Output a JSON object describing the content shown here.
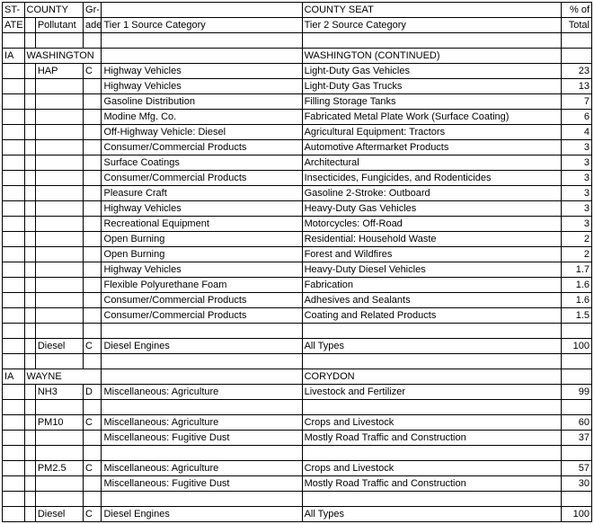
{
  "headers": {
    "row1": {
      "state": "ST-",
      "county": "COUNTY",
      "grade": "Gr-",
      "seat": "COUNTY SEAT",
      "pct": "% of"
    },
    "row2": {
      "ate": "ATE",
      "pollutant": "Pollutant",
      "ade": "ade",
      "tier1": "Tier 1 Source Category",
      "tier2": "Tier 2 Source Category",
      "total": "Total"
    }
  },
  "rows": [
    {
      "type": "blank"
    },
    {
      "type": "county",
      "state": "IA",
      "county": "WASHINGTON",
      "seat": "WASHINGTON (CONTINUED)"
    },
    {
      "type": "data",
      "pollutant": "HAP",
      "grade": "C",
      "tier1": "Highway Vehicles",
      "tier2": "Light-Duty Gas Vehicles",
      "pct": "23"
    },
    {
      "type": "data",
      "tier1": "Highway Vehicles",
      "tier2": "Light-Duty Gas Trucks",
      "pct": "13"
    },
    {
      "type": "data",
      "tier1": "Gasoline Distribution",
      "tier2": "Filling Storage Tanks",
      "pct": "7"
    },
    {
      "type": "data",
      "tier1": "Modine Mfg. Co.",
      "tier2": "Fabricated Metal Plate Work (Surface Coating)",
      "pct": "6"
    },
    {
      "type": "data",
      "tier1": "Off-Highway Vehicle: Diesel",
      "tier2": "Agricultural Equipment: Tractors",
      "pct": "4"
    },
    {
      "type": "data",
      "tier1": "Consumer/Commercial Products",
      "tier2": "Automotive Aftermarket Products",
      "pct": "3"
    },
    {
      "type": "data",
      "tier1": "Surface Coatings",
      "tier2": "Architectural",
      "pct": "3"
    },
    {
      "type": "data",
      "tier1": "Consumer/Commercial Products",
      "tier2": "Insecticides, Fungicides, and Rodenticides",
      "pct": "3"
    },
    {
      "type": "data",
      "tier1": "Pleasure Craft",
      "tier2": "Gasoline 2-Stroke: Outboard",
      "pct": "3"
    },
    {
      "type": "data",
      "tier1": "Highway Vehicles",
      "tier2": "Heavy-Duty Gas Vehicles",
      "pct": "3"
    },
    {
      "type": "data",
      "tier1": "Recreational Equipment",
      "tier2": "Motorcycles: Off-Road",
      "pct": "3"
    },
    {
      "type": "data",
      "tier1": "Open Burning",
      "tier2": "Residential: Household Waste",
      "pct": "2"
    },
    {
      "type": "data",
      "tier1": "Open Burning",
      "tier2": "Forest and Wildfires",
      "pct": "2"
    },
    {
      "type": "data",
      "tier1": "Highway Vehicles",
      "tier2": "Heavy-Duty Diesel Vehicles",
      "pct": "1.7"
    },
    {
      "type": "data",
      "tier1": "Flexible Polyurethane Foam",
      "tier2": "Fabrication",
      "pct": "1.6"
    },
    {
      "type": "data",
      "tier1": "Consumer/Commercial Products",
      "tier2": "Adhesives and Sealants",
      "pct": "1.6"
    },
    {
      "type": "data",
      "tier1": "Consumer/Commercial Products",
      "tier2": "Coating and Related Products",
      "pct": "1.5"
    },
    {
      "type": "blank"
    },
    {
      "type": "data",
      "pollutant": "Diesel",
      "grade": "C",
      "tier1": "Diesel Engines",
      "tier2": "All Types",
      "pct": "100"
    },
    {
      "type": "blank"
    },
    {
      "type": "county",
      "state": "IA",
      "county": "WAYNE",
      "seat": "CORYDON"
    },
    {
      "type": "data",
      "pollutant": "NH3",
      "grade": "D",
      "tier1": "Miscellaneous: Agriculture",
      "tier2": "Livestock and Fertilizer",
      "pct": "99"
    },
    {
      "type": "blank"
    },
    {
      "type": "data",
      "pollutant": "PM10",
      "grade": "C",
      "tier1": "Miscellaneous: Agriculture",
      "tier2": "Crops and Livestock",
      "pct": "60"
    },
    {
      "type": "data",
      "tier1": "Miscellaneous: Fugitive Dust",
      "tier2": "Mostly Road Traffic and Construction",
      "pct": "37"
    },
    {
      "type": "blank"
    },
    {
      "type": "data",
      "pollutant": "PM2.5",
      "grade": "C",
      "tier1": "Miscellaneous: Agriculture",
      "tier2": "Crops and Livestock",
      "pct": "57"
    },
    {
      "type": "data",
      "tier1": "Miscellaneous: Fugitive Dust",
      "tier2": "Mostly Road Traffic and Construction",
      "pct": "30"
    },
    {
      "type": "blank"
    },
    {
      "type": "data",
      "pollutant": "Diesel",
      "grade": "C",
      "tier1": "Diesel Engines",
      "tier2": "All Types",
      "pct": "100"
    }
  ]
}
